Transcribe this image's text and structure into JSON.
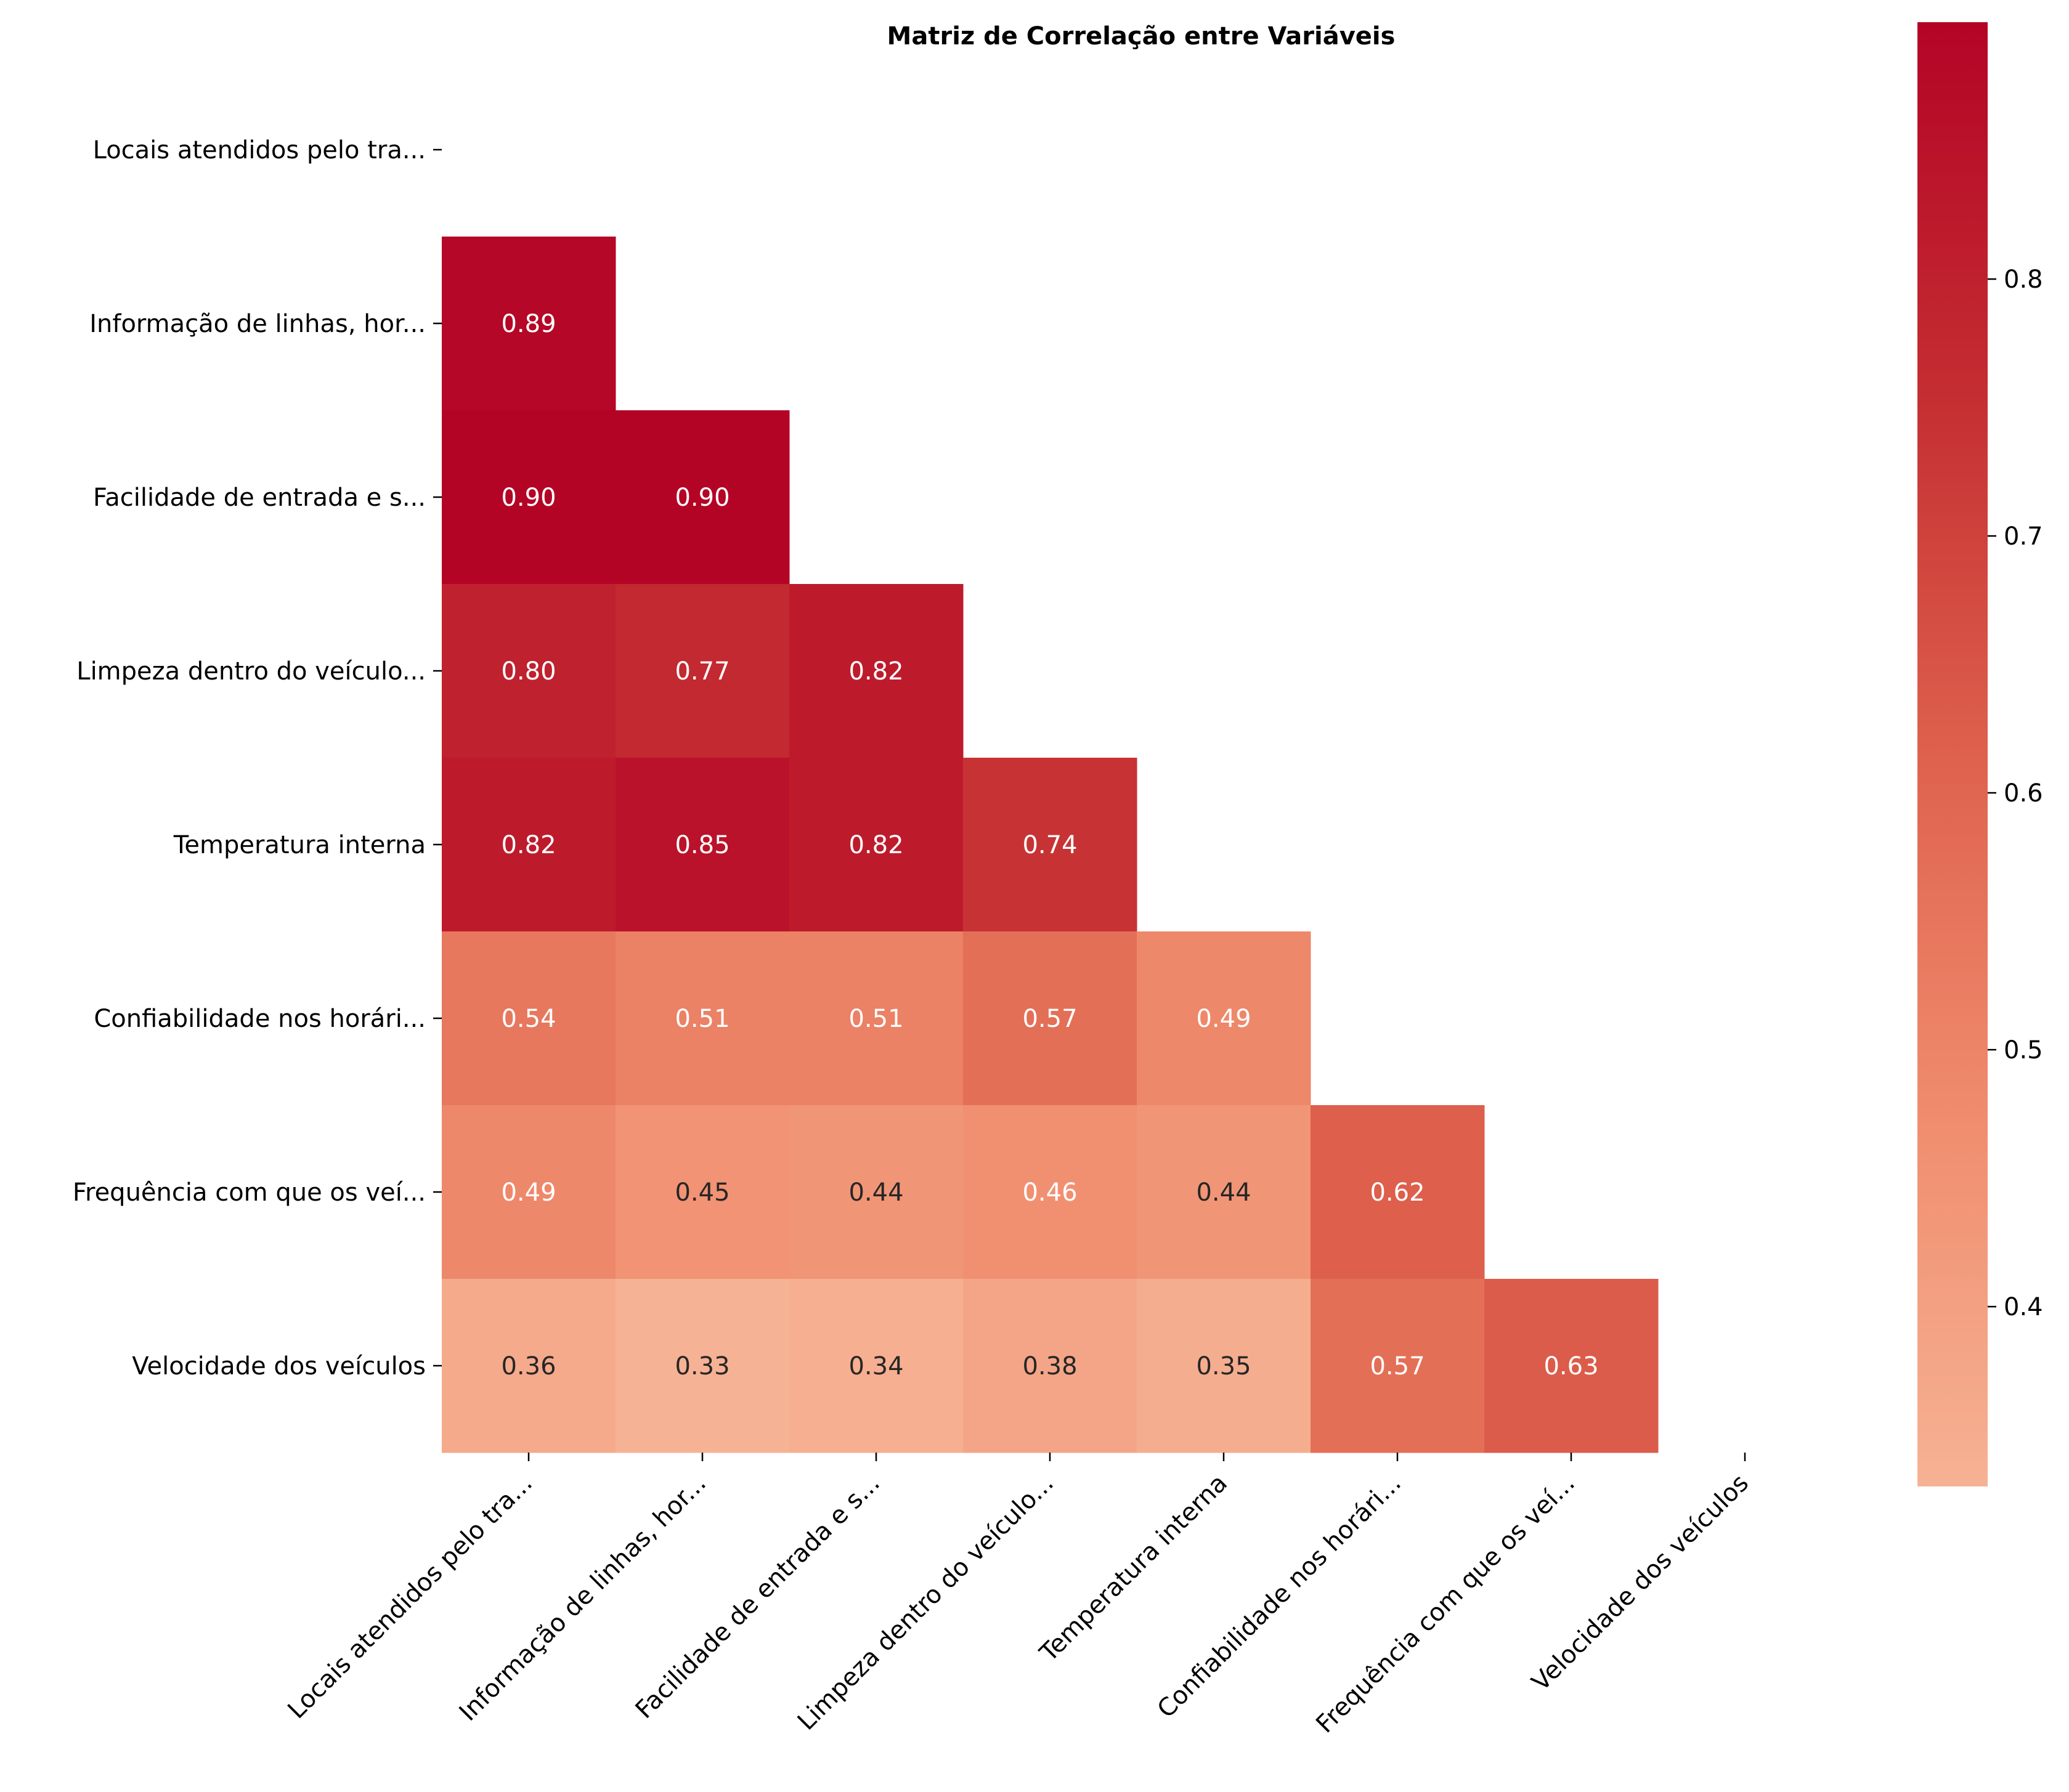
{
  "chart_data": {
    "type": "heatmap",
    "title": "Matriz de Correlação entre Variáveis",
    "variables": [
      "Locais atendidos pelo tra...",
      "Informação de linhas, hor...",
      "Facilidade de entrada e s...",
      "Limpeza dentro do veículo...",
      "Temperatura interna ",
      "Confiabilidade nos horári...",
      "Frequência com que os veí...",
      "Velocidade dos veículos  "
    ],
    "mask": "upper triangle including diagonal",
    "values": [
      [
        null,
        null,
        null,
        null,
        null,
        null,
        null,
        null
      ],
      [
        0.89,
        null,
        null,
        null,
        null,
        null,
        null,
        null
      ],
      [
        0.9,
        0.9,
        null,
        null,
        null,
        null,
        null,
        null
      ],
      [
        0.8,
        0.77,
        0.82,
        null,
        null,
        null,
        null,
        null
      ],
      [
        0.82,
        0.85,
        0.82,
        0.74,
        null,
        null,
        null,
        null
      ],
      [
        0.54,
        0.51,
        0.51,
        0.57,
        0.49,
        null,
        null,
        null
      ],
      [
        0.49,
        0.45,
        0.44,
        0.46,
        0.44,
        0.62,
        null,
        null
      ],
      [
        0.36,
        0.33,
        0.34,
        0.38,
        0.35,
        0.57,
        0.63,
        null
      ]
    ],
    "colormap": "coolwarm (upper half)",
    "colorbar": {
      "range": [
        0.33,
        0.9
      ],
      "ticks": [
        0.4,
        0.5,
        0.6,
        0.7,
        0.8
      ],
      "tick_labels": [
        "0.4",
        "0.5",
        "0.6",
        "0.7",
        "0.8"
      ]
    },
    "annotation_format": "0.00",
    "grid": false
  }
}
